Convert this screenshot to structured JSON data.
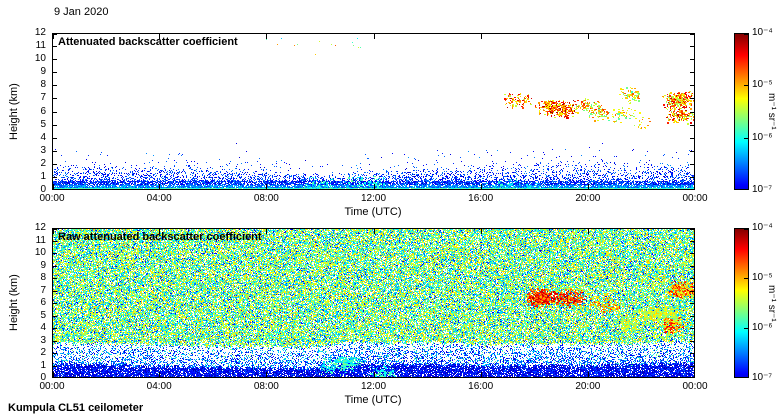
{
  "header": {
    "date_label": "9 Jan 2020"
  },
  "footer": {
    "station_label": "Kumpula CL51 ceilometer"
  },
  "colors": {
    "background": "#ffffff",
    "axis": "#000000",
    "colormap": "jet"
  },
  "chart_data": [
    {
      "type": "heatmap",
      "title": "Attenuated backscatter coefficient",
      "xlabel": "Time (UTC)",
      "ylabel": "Height (km)",
      "x_ticks": [
        "00:00",
        "04:00",
        "08:00",
        "12:00",
        "16:00",
        "20:00",
        "00:00"
      ],
      "y_ticks": [
        0,
        1,
        2,
        3,
        4,
        5,
        6,
        7,
        8,
        9,
        10,
        11,
        12
      ],
      "xlim_hours": [
        0,
        24
      ],
      "ylim_km": [
        0,
        12
      ],
      "grid": false,
      "colorbar": {
        "ticks": [
          "10⁻⁴",
          "10⁻⁵",
          "10⁻⁶",
          "10⁻⁷"
        ],
        "label": "m⁻¹ sr⁻¹",
        "scale": "log",
        "range": [
          "1e-7",
          "1e-4"
        ]
      },
      "features": {
        "background": "white",
        "boundary_layer": {
          "description": "Dense blue aerosol speckle below ~2 km, brightest cyan right at the surface, top height varies through the day",
          "top_profile_km": [
            [
              0,
              1.9
            ],
            [
              4,
              1.7
            ],
            [
              7,
              1.55
            ],
            [
              9,
              1.15
            ],
            [
              10.5,
              1.1
            ],
            [
              12,
              1.5
            ],
            [
              14,
              1.6
            ],
            [
              16,
              1.7
            ],
            [
              18,
              2.0
            ],
            [
              20,
              2.2
            ],
            [
              22,
              1.9
            ],
            [
              24,
              1.9
            ]
          ]
        },
        "surface_blobs": [
          {
            "t": [
              9.5,
              12.5
            ],
            "h": [
              0,
              0.8
            ],
            "palette": [
              0.3,
              0.48
            ],
            "density": 0.5
          },
          {
            "t": [
              16.3,
              18.2
            ],
            "h": [
              0,
              0.6
            ],
            "palette": [
              0.3,
              0.45
            ],
            "density": 0.4
          }
        ],
        "clouds": [
          {
            "t": [
              17.05,
              17.75
            ],
            "h": [
              6.2,
              7.6
            ],
            "density": 0.55,
            "palette": [
              0.55,
              0.95
            ]
          },
          {
            "t": [
              18.2,
              19.6
            ],
            "h": [
              4.9,
              6.6
            ],
            "density": 0.85,
            "palette": [
              0.58,
              0.98
            ]
          },
          {
            "t": [
              19.6,
              20.5
            ],
            "h": [
              5.4,
              7.3
            ],
            "density": 0.5,
            "palette": [
              0.45,
              0.85
            ]
          },
          {
            "t": [
              20.6,
              21.7
            ],
            "h": [
              5.2,
              7.6
            ],
            "density": 0.3,
            "palette": [
              0.42,
              0.8
            ]
          },
          {
            "t": [
              21.8,
              22.3
            ],
            "h": [
              4.8,
              5.8
            ],
            "density": 0.25,
            "palette": [
              0.5,
              0.8
            ]
          },
          {
            "t": [
              22.5,
              24
            ],
            "h": [
              4.3,
              7.3
            ],
            "density": 0.6,
            "palette": [
              0.5,
              0.95
            ]
          }
        ],
        "high_specks": {
          "t": [
            8,
            12
          ],
          "h": [
            10.2,
            11.8
          ],
          "count": 14
        }
      }
    },
    {
      "type": "heatmap",
      "title": "Raw attenuated backscatter coefficient",
      "xlabel": "Time (UTC)",
      "ylabel": "Height (km)",
      "x_ticks": [
        "00:00",
        "04:00",
        "08:00",
        "12:00",
        "16:00",
        "20:00",
        "00:00"
      ],
      "y_ticks": [
        0,
        1,
        2,
        3,
        4,
        5,
        6,
        7,
        8,
        9,
        10,
        11,
        12
      ],
      "xlim_hours": [
        0,
        24
      ],
      "ylim_km": [
        0,
        12
      ],
      "grid": false,
      "colorbar": {
        "ticks": [
          "10⁻⁴",
          "10⁻⁵",
          "10⁻⁶",
          "10⁻⁷"
        ],
        "label": "m⁻¹ sr⁻¹",
        "scale": "log",
        "range": [
          "1e-7",
          "1e-4"
        ]
      },
      "features": {
        "background": "full-field green/cyan/blue speckle noise with white gaps",
        "surface_layer_top_km": [
          [
            0,
            1.15
          ],
          [
            4,
            1.0
          ],
          [
            7,
            0.85
          ],
          [
            10,
            0.8
          ],
          [
            11,
            1.25
          ],
          [
            12.5,
            1.1
          ],
          [
            14,
            1.2
          ],
          [
            16,
            0.95
          ],
          [
            18,
            1.0
          ],
          [
            20,
            1.05
          ],
          [
            22,
            1.1
          ],
          [
            24,
            1.25
          ]
        ],
        "surface_blobs": [
          {
            "t": [
              10.2,
              12.6
            ],
            "h": [
              0.2,
              1.4
            ],
            "palette": [
              0.32,
              0.5
            ],
            "density": 0.6
          }
        ],
        "clouds": [
          {
            "t": [
              17.9,
              19.8
            ],
            "h": [
              5.5,
              7.0
            ],
            "density": 0.75,
            "palette": [
              0.7,
              0.95
            ]
          },
          {
            "t": [
              20.1,
              21.1
            ],
            "h": [
              5.6,
              6.7
            ],
            "density": 0.35,
            "palette": [
              0.6,
              0.85
            ]
          },
          {
            "t": [
              21.4,
              23.1
            ],
            "h": [
              3.6,
              6.0
            ],
            "density": 0.55,
            "palette": [
              0.45,
              0.68
            ]
          },
          {
            "t": [
              23,
              24
            ],
            "h": [
              4.0,
              7.6
            ],
            "density": 0.7,
            "palette": [
              0.5,
              0.92
            ]
          }
        ]
      }
    }
  ]
}
